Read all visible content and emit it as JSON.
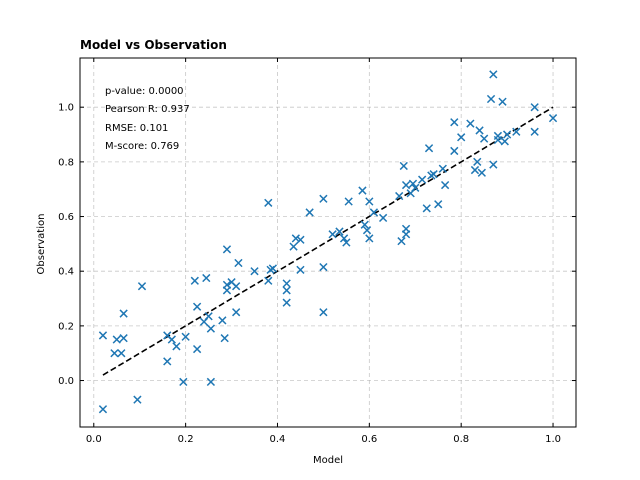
{
  "chart_data": {
    "type": "scatter",
    "title": "Model vs Observation",
    "xlabel": "Model",
    "ylabel": "Observation",
    "xlim": [
      -0.03,
      1.05
    ],
    "ylim": [
      -0.17,
      1.18
    ],
    "xticks": [
      "0.0",
      "0.2",
      "0.4",
      "0.6",
      "0.8",
      "1.0"
    ],
    "yticks": [
      "0.0",
      "0.2",
      "0.4",
      "0.6",
      "0.8",
      "1.0"
    ],
    "grid": true,
    "marker": "x",
    "marker_color": "#1f77b4",
    "reference_line": {
      "style": "dashed",
      "color": "#000000",
      "x": [
        0.02,
        1.0
      ],
      "y": [
        0.02,
        1.0
      ]
    },
    "annotations": [
      "p-value: 0.0000",
      "Pearson R: 0.937",
      "RMSE: 0.101",
      "M-score: 0.769"
    ],
    "points": [
      [
        0.02,
        0.165
      ],
      [
        0.02,
        -0.105
      ],
      [
        0.045,
        0.1
      ],
      [
        0.05,
        0.15
      ],
      [
        0.06,
        0.1
      ],
      [
        0.065,
        0.155
      ],
      [
        0.065,
        0.245
      ],
      [
        0.095,
        -0.07
      ],
      [
        0.105,
        0.345
      ],
      [
        0.16,
        0.165
      ],
      [
        0.16,
        0.07
      ],
      [
        0.17,
        0.15
      ],
      [
        0.18,
        0.125
      ],
      [
        0.195,
        -0.005
      ],
      [
        0.2,
        0.16
      ],
      [
        0.22,
        0.365
      ],
      [
        0.225,
        0.27
      ],
      [
        0.225,
        0.115
      ],
      [
        0.24,
        0.215
      ],
      [
        0.245,
        0.375
      ],
      [
        0.25,
        0.235
      ],
      [
        0.255,
        -0.005
      ],
      [
        0.255,
        0.19
      ],
      [
        0.28,
        0.22
      ],
      [
        0.285,
        0.155
      ],
      [
        0.29,
        0.48
      ],
      [
        0.29,
        0.35
      ],
      [
        0.29,
        0.33
      ],
      [
        0.3,
        0.36
      ],
      [
        0.31,
        0.345
      ],
      [
        0.31,
        0.25
      ],
      [
        0.315,
        0.43
      ],
      [
        0.35,
        0.4
      ],
      [
        0.38,
        0.65
      ],
      [
        0.38,
        0.365
      ],
      [
        0.385,
        0.405
      ],
      [
        0.39,
        0.41
      ],
      [
        0.42,
        0.355
      ],
      [
        0.42,
        0.33
      ],
      [
        0.42,
        0.285
      ],
      [
        0.435,
        0.49
      ],
      [
        0.44,
        0.52
      ],
      [
        0.45,
        0.515
      ],
      [
        0.45,
        0.405
      ],
      [
        0.47,
        0.615
      ],
      [
        0.5,
        0.665
      ],
      [
        0.5,
        0.415
      ],
      [
        0.5,
        0.25
      ],
      [
        0.52,
        0.535
      ],
      [
        0.535,
        0.545
      ],
      [
        0.545,
        0.52
      ],
      [
        0.55,
        0.505
      ],
      [
        0.555,
        0.655
      ],
      [
        0.585,
        0.695
      ],
      [
        0.59,
        0.57
      ],
      [
        0.595,
        0.55
      ],
      [
        0.6,
        0.655
      ],
      [
        0.6,
        0.52
      ],
      [
        0.61,
        0.615
      ],
      [
        0.63,
        0.595
      ],
      [
        0.665,
        0.675
      ],
      [
        0.67,
        0.51
      ],
      [
        0.675,
        0.785
      ],
      [
        0.68,
        0.715
      ],
      [
        0.68,
        0.535
      ],
      [
        0.68,
        0.555
      ],
      [
        0.69,
        0.685
      ],
      [
        0.695,
        0.72
      ],
      [
        0.7,
        0.705
      ],
      [
        0.715,
        0.735
      ],
      [
        0.725,
        0.63
      ],
      [
        0.73,
        0.85
      ],
      [
        0.735,
        0.75
      ],
      [
        0.74,
        0.755
      ],
      [
        0.75,
        0.645
      ],
      [
        0.76,
        0.775
      ],
      [
        0.765,
        0.715
      ],
      [
        0.785,
        0.945
      ],
      [
        0.785,
        0.84
      ],
      [
        0.8,
        0.89
      ],
      [
        0.82,
        0.94
      ],
      [
        0.83,
        0.77
      ],
      [
        0.835,
        0.8
      ],
      [
        0.84,
        0.915
      ],
      [
        0.845,
        0.76
      ],
      [
        0.85,
        0.885
      ],
      [
        0.865,
        1.03
      ],
      [
        0.87,
        1.12
      ],
      [
        0.87,
        0.79
      ],
      [
        0.88,
        0.895
      ],
      [
        0.88,
        0.88
      ],
      [
        0.89,
        1.02
      ],
      [
        0.895,
        0.875
      ],
      [
        0.9,
        0.9
      ],
      [
        0.92,
        0.91
      ],
      [
        0.96,
        1.0
      ],
      [
        0.96,
        0.91
      ],
      [
        1.0,
        0.96
      ]
    ]
  }
}
